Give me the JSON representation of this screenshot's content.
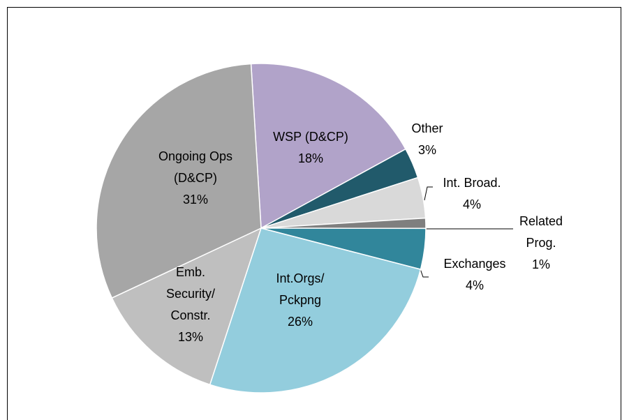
{
  "chart_data": {
    "type": "pie",
    "categories": [
      "WSP (D&CP)",
      "Other",
      "Int. Broad.",
      "Related\nProg.",
      "Exchanges",
      "Int.Orgs/\nPckpng",
      "Emb.\nSecurity/\nConstr.",
      "Ongoing Ops\n(D&CP)"
    ],
    "values": [
      18,
      3,
      4,
      1,
      4,
      26,
      13,
      31
    ],
    "value_labels": [
      "18%",
      "3%",
      "4%",
      "1%",
      "4%",
      "26%",
      "13%",
      "31%"
    ],
    "colors": [
      "#b1a3c9",
      "#215a6b",
      "#d9d9d9",
      "#7f7f7f",
      "#31869b",
      "#93cddd",
      "#bfbfbf",
      "#a6a6a6"
    ]
  }
}
